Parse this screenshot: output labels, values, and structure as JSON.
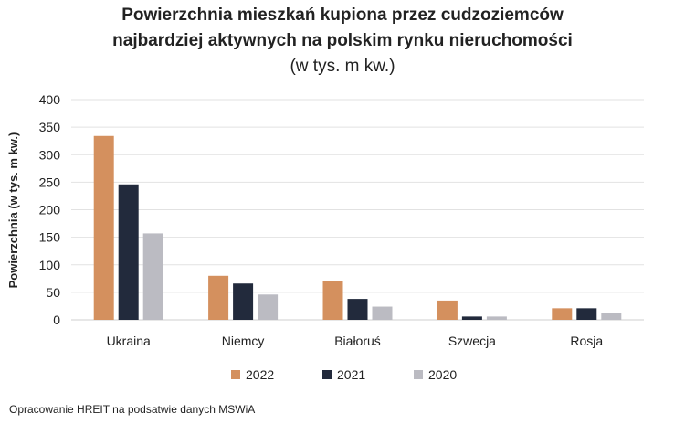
{
  "chart_data": {
    "type": "bar",
    "title": "Powierzchnia mieszkań kupiona przez cudzoziemców najbardziej aktywnych na polskim rynku nieruchomości",
    "title_lines": [
      "Powierzchnia mieszkań kupiona przez cudzoziemców",
      "najbardziej aktywnych na polskim rynku nieruchomości"
    ],
    "subtitle": "(w tys. m kw.)",
    "xlabel": "",
    "ylabel": "Powierzchnia (w tys. m kw.)",
    "ylim": [
      0,
      400
    ],
    "yticks": [
      0,
      50,
      100,
      150,
      200,
      250,
      300,
      350,
      400
    ],
    "grid": true,
    "legend_position": "bottom",
    "categories": [
      "Ukraina",
      "Niemcy",
      "Białoruś",
      "Szwecja",
      "Rosja"
    ],
    "series": [
      {
        "name": "2022",
        "color": "#D4905E",
        "values": [
          334,
          80,
          70,
          35,
          21
        ]
      },
      {
        "name": "2021",
        "color": "#222A3C",
        "values": [
          246,
          66,
          38,
          6,
          21
        ]
      },
      {
        "name": "2020",
        "color": "#BBBBC2",
        "values": [
          157,
          46,
          24,
          6,
          13
        ]
      }
    ]
  },
  "source": "Opracowanie HREIT na podsatwie danych MSWiA"
}
